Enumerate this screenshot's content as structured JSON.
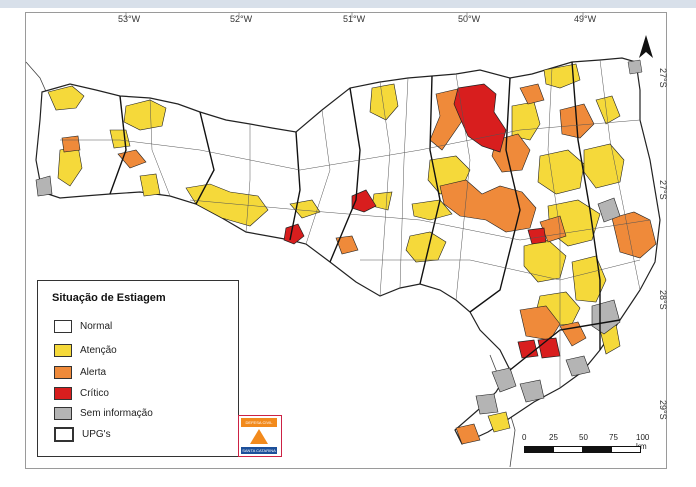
{
  "map": {
    "longitude_labels": [
      "53°W",
      "52°W",
      "51°W",
      "50°W",
      "49°W"
    ],
    "latitude_labels": [
      "27°S",
      "27°S",
      "28°S",
      "29°S"
    ],
    "north_label": "N",
    "legend": {
      "title": "Situação de Estiagem",
      "items": [
        {
          "label": "Normal",
          "color": "#ffffff"
        },
        {
          "label": "Atenção",
          "color": "#f5d93a"
        },
        {
          "label": "Alerta",
          "color": "#ef8a3a"
        },
        {
          "label": "Crítico",
          "color": "#d81e1e"
        },
        {
          "label": "Sem informação",
          "color": "#b4b4b4"
        },
        {
          "label": "UPG's",
          "color": "#ffffff"
        }
      ]
    },
    "scale": {
      "ticks": [
        "0",
        "25",
        "50",
        "75",
        "100 km"
      ]
    },
    "logo": {
      "top_text": "DEFESA CIVIL",
      "bottom_text": "SANTA CATARINA"
    },
    "colors": {
      "normal": "#ffffff",
      "atencao": "#f5d93a",
      "alerta": "#ef8a3a",
      "critico": "#d81e1e",
      "sem_informacao": "#b4b4b4",
      "boundary": "#222222"
    }
  }
}
